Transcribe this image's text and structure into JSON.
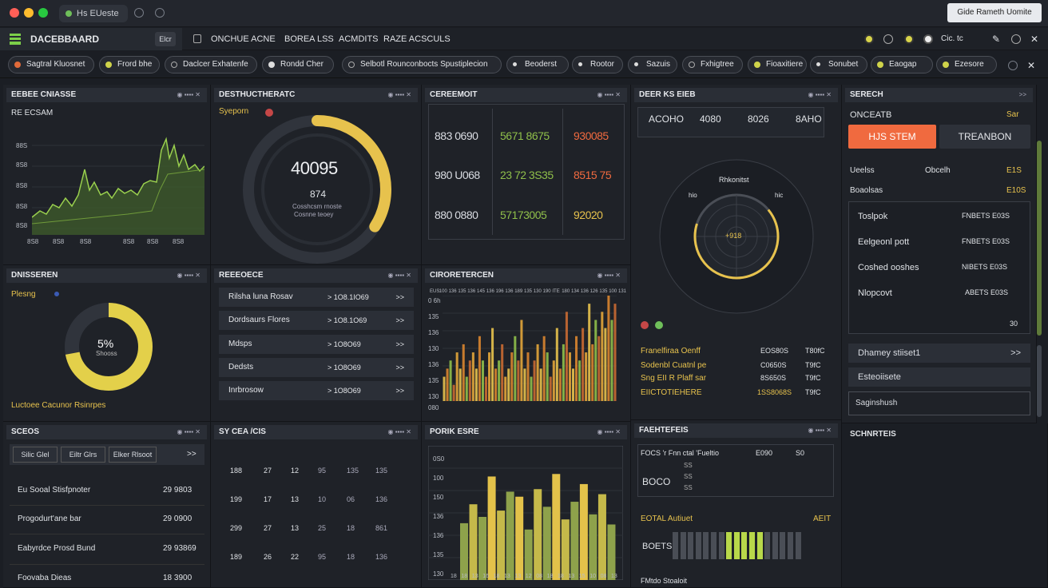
{
  "window": {
    "tab": "Hs EUeste",
    "action": "Gide Rameth Uomite"
  },
  "menubar": {
    "logo": "DACEBBAARD",
    "logo_btn": "Elcr",
    "items": [
      "ONCHUE ACNE",
      "BOREA LSS",
      "ACMDITS",
      "RAZE ACSCULS"
    ],
    "right_text": "Cic. tc"
  },
  "filters": [
    "Sagtral Kluosnet",
    "Frord bhe",
    "Daclcer Exhatenfe",
    "Rondd Cher",
    "Selbotl Rounconbocts Spustiplecion",
    "Beoderst",
    "Rootor",
    "Sazuis",
    "Fxhigtree",
    "Fioaxitiere",
    "Sonubet",
    "Eaogap",
    "Ezesore"
  ],
  "colors": {
    "accent_yellow": "#e7c24d",
    "accent_orange": "#f06a3f",
    "accent_green": "#8fbf4a",
    "bg": "#1b1e24"
  },
  "p1": {
    "title": "EEBEE CNIASSE",
    "sub": "RE ECSAM",
    "yticks": [
      "88S",
      "8S8",
      "8S8",
      "8S8",
      "8S8"
    ],
    "xticks": [
      "8S8",
      "8S8",
      "8S8",
      "8S8",
      "8S8",
      "8S8"
    ]
  },
  "p2": {
    "title": "DESTHUCTHERATC",
    "legend": "Syeporn",
    "value": "40095",
    "sub1": "874",
    "sub2": "Cosshcsm rnoste",
    "sub3": "Cosnne teoey",
    "percent": 0.62
  },
  "p3": {
    "title": "CEREEMOIT",
    "grid": [
      [
        "883 0690",
        "5671 8675",
        "930085"
      ],
      [
        "980 U068",
        "23 72 3S35",
        "8515 75"
      ],
      [
        "880 0880",
        "57173005",
        "92020"
      ]
    ]
  },
  "p4": {
    "title": "DEER KS EIEB",
    "headers": [
      "ACOHO",
      "4080",
      "8026",
      "8AHO"
    ],
    "radar_title": "Rhkonitst",
    "radar_left": "hio",
    "radar_right": "hic",
    "radar_center": "+918",
    "pct": 0.66,
    "list": [
      [
        "Franelfiraa Oenff",
        "EOS80S",
        "T80fC"
      ],
      [
        "Sodenbl Cuatnl pe",
        "C0650S",
        "T9fC"
      ],
      [
        "Sng EII R Plaff sar",
        "8S650S",
        "T9fC"
      ],
      [
        "EIICTOTIEHERE",
        "1SS8068S",
        "T9fC"
      ]
    ]
  },
  "p5": {
    "title": "SERECH",
    "sub": "ONCEATB",
    "sub_val": "Sar",
    "btn_primary": "HJS STEM",
    "btn_secondary": "TREANBON",
    "col1": "Ueelss",
    "col2": "Obcelh",
    "col3": "E1S",
    "row2": "Boaolsas",
    "row2v": "E10S",
    "items": [
      [
        "Toslpok",
        "FNBETS E03S"
      ],
      [
        "Eelgeonl pott",
        "FNBETS E03S"
      ],
      [
        "Coshed ooshes",
        "NIBETS E03S"
      ],
      [
        "Nlopcovt",
        "ABETS E03S"
      ]
    ],
    "foot": "30",
    "a": "Dhamey stiiset1",
    "b": "Esteoiisete",
    "c": "Saginshush"
  },
  "p6": {
    "title": "DNISSEREN",
    "legend": "Plesng",
    "center": "5%",
    "center_sub": "Shooss",
    "foot": "Luctoee Cacunor Rsinrpes",
    "pct": 0.72
  },
  "p7": {
    "title": "REEEOECE",
    "rows": [
      [
        "Rilsha luna Rosav",
        "> 1O8.1IO69"
      ],
      [
        "Dordsaurs Flores",
        "> 1O8.1O69"
      ],
      [
        "Mdsps",
        "> 1O8O69"
      ],
      [
        "Dedsts",
        "> 1O8O69"
      ],
      [
        "Inrbrosow",
        "> 1O8O69"
      ]
    ]
  },
  "p8": {
    "title": "CIRORETERCEN",
    "yticks": [
      "0 6h",
      "135",
      "136",
      "130",
      "136",
      "135",
      "130"
    ],
    "xticks": [
      "EUS",
      "100",
      "136",
      "135",
      "136",
      "145",
      "136",
      "196",
      "136",
      "189",
      "135",
      "130",
      "190",
      "ITE",
      "180",
      "134",
      "136",
      "126",
      "135",
      "100",
      "131"
    ],
    "bars": [
      3,
      4,
      5,
      2,
      6,
      4,
      7,
      3,
      5,
      6,
      4,
      8,
      5,
      3,
      6,
      9,
      4,
      5,
      7,
      3,
      4,
      6,
      8,
      5,
      10,
      4,
      6,
      3,
      5,
      7,
      4,
      8,
      6,
      3,
      5,
      9,
      4,
      7,
      11,
      6,
      4,
      8,
      5,
      9,
      6,
      12,
      7,
      10,
      8,
      11,
      9,
      13,
      10,
      12
    ],
    "foot": "080"
  },
  "p9": {
    "title": "SCEOS",
    "tabs": [
      "Silic Glel",
      "Eiltr Glrs",
      "Elker Rlsoot"
    ],
    "rows": [
      [
        "Eu Sooal Stisfpnoter",
        "29 9803"
      ],
      [
        "Progodurt'ane bar",
        "29 0900"
      ],
      [
        "Eabyrdce Prosd Bund",
        "29 93869"
      ],
      [
        "Foovaba Dieas",
        "18 3900"
      ]
    ]
  },
  "p10": {
    "title": "SY CEA /CIS",
    "grid": [
      [
        "188",
        "27",
        "12",
        "95",
        "135",
        "135"
      ],
      [
        "199",
        "17",
        "13",
        "10",
        "06",
        "136"
      ],
      [
        "299",
        "27",
        "13",
        "25",
        "18",
        "861"
      ],
      [
        "189",
        "26",
        "22",
        "95",
        "18",
        "136"
      ]
    ]
  },
  "p11": {
    "title": "PORIK ESRE",
    "yticks": [
      "0S0",
      "100",
      "150",
      "136",
      "136",
      "135",
      "130"
    ],
    "xticks": [
      "18",
      "18",
      "13",
      "16",
      "18",
      "13",
      "13",
      "12",
      "08",
      "18",
      "18",
      "13",
      "15",
      "10",
      "08",
      "13"
    ],
    "bars": [
      45,
      60,
      50,
      82,
      55,
      70,
      66,
      40,
      72,
      58,
      84,
      48,
      62,
      76,
      52,
      68,
      44
    ],
    "colors": [
      "#8ea24b",
      "#c5b94a",
      "#8ea24b",
      "#e3c24a",
      "#c5b94a",
      "#8ea24b",
      "#e3c24a",
      "#8ea24b",
      "#c5b94a",
      "#8ea24b",
      "#e3c24a",
      "#c5b94a",
      "#8ea24b",
      "#e3c24a",
      "#8ea24b",
      "#c5b94a",
      "#8ea24b"
    ]
  },
  "p12": {
    "title": "FAEHTEFEIS",
    "head": [
      "FOCS 'r Fnn ctal 'Fueltio",
      "E090",
      "S0"
    ],
    "left": "BOCO",
    "small": [
      "SS",
      "SS",
      "SS"
    ],
    "bar_title": "EOTAL Autiuet",
    "bar_right": "AEIT",
    "bar_left": "BOETS",
    "foot": "FMtdo Stoaloit",
    "bar_on": [
      0,
      0,
      0,
      0,
      0,
      0,
      0,
      1,
      1,
      1,
      1,
      1,
      0,
      0,
      0,
      0,
      0
    ]
  },
  "p13": {
    "title": "SCHNRTEIS"
  }
}
